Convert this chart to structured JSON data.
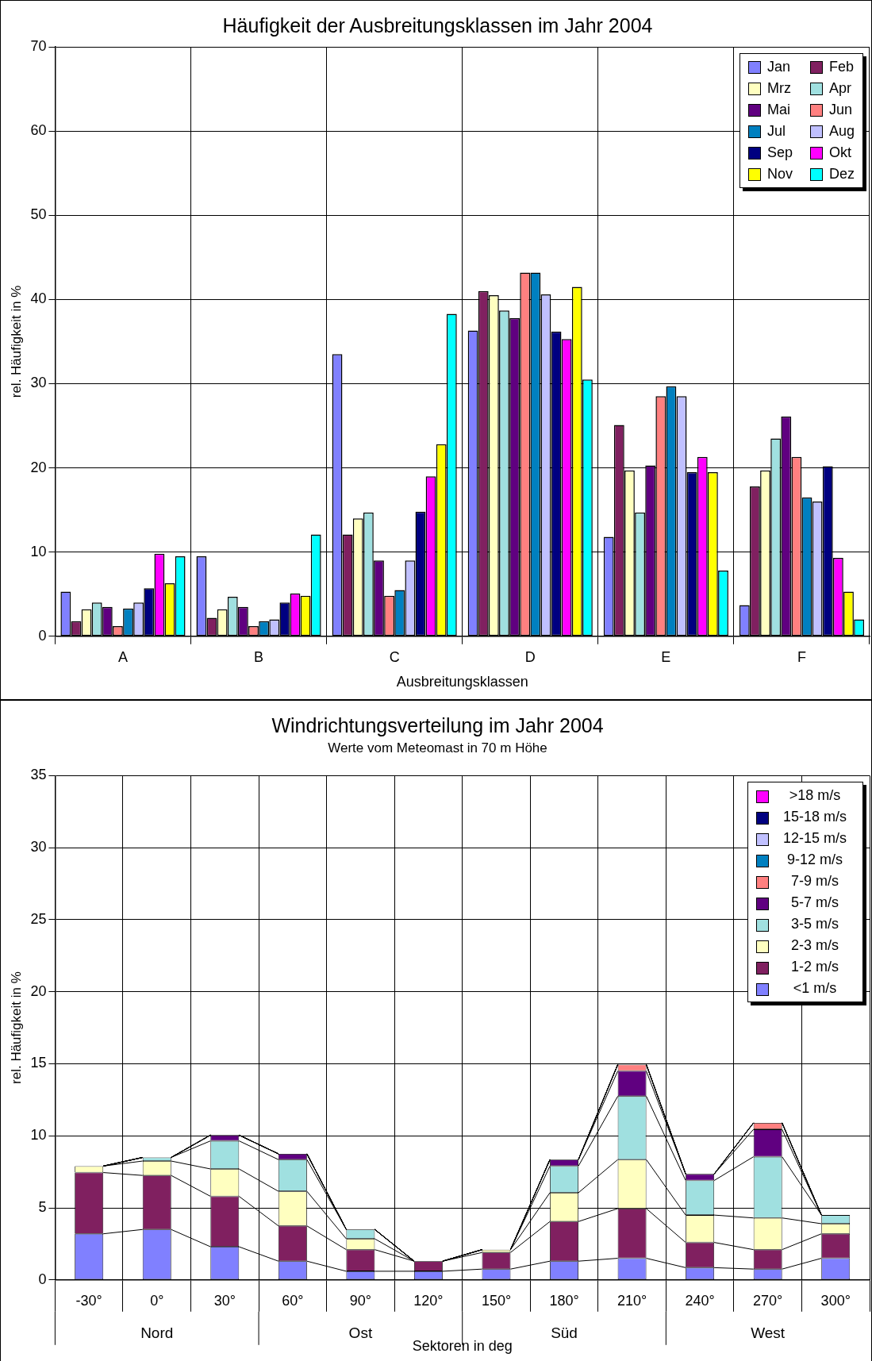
{
  "chart_data": [
    {
      "type": "bar",
      "title": "Häufigkeit der Ausbreitungsklassen im Jahr 2004",
      "xlabel": "Ausbreitungsklassen",
      "ylabel": "rel. Häufigkeit in %",
      "categories": [
        "A",
        "B",
        "C",
        "D",
        "E",
        "F"
      ],
      "ylim": [
        0,
        70
      ],
      "yticks": [
        0,
        10,
        20,
        30,
        40,
        50,
        60,
        70
      ],
      "grid": true,
      "legend": "top right",
      "series": [
        {
          "name": "Jan",
          "color": "#8080ff",
          "values": [
            5.3,
            9.5,
            33.5,
            36.3,
            11.8,
            3.7
          ]
        },
        {
          "name": "Feb",
          "color": "#802060",
          "values": [
            1.8,
            2.2,
            12.1,
            41.0,
            25.1,
            17.8
          ]
        },
        {
          "name": "Mrz",
          "color": "#ffffc0",
          "values": [
            3.2,
            3.2,
            14.0,
            40.5,
            19.7,
            19.7
          ]
        },
        {
          "name": "Apr",
          "color": "#a0e0e0",
          "values": [
            4.0,
            4.7,
            14.7,
            38.7,
            14.7,
            23.5
          ]
        },
        {
          "name": "Mai",
          "color": "#600080",
          "values": [
            3.5,
            3.5,
            9.0,
            37.8,
            20.3,
            26.1
          ]
        },
        {
          "name": "Jun",
          "color": "#ff8080",
          "values": [
            1.2,
            1.2,
            4.8,
            43.2,
            28.5,
            21.3
          ]
        },
        {
          "name": "Jul",
          "color": "#0080c0",
          "values": [
            3.3,
            1.8,
            5.5,
            43.2,
            29.7,
            16.5
          ]
        },
        {
          "name": "Aug",
          "color": "#c0c0ff",
          "values": [
            4.0,
            2.0,
            9.0,
            40.6,
            28.5,
            16.0
          ]
        },
        {
          "name": "Sep",
          "color": "#000080",
          "values": [
            5.7,
            4.0,
            14.8,
            36.2,
            19.5,
            20.2
          ]
        },
        {
          "name": "Okt",
          "color": "#ff00ff",
          "values": [
            9.8,
            5.1,
            19.0,
            35.3,
            21.3,
            9.3
          ]
        },
        {
          "name": "Nov",
          "color": "#ffff00",
          "values": [
            6.3,
            4.8,
            22.8,
            41.5,
            19.5,
            5.3
          ]
        },
        {
          "name": "Dez",
          "color": "#00ffff",
          "values": [
            9.5,
            12.1,
            38.3,
            30.5,
            7.8,
            2.0
          ]
        }
      ]
    },
    {
      "type": "bar",
      "stacked": true,
      "title": "Windrichtungsverteilung im Jahr 2004",
      "subtitle": "Werte vom Meteomast in 70 m Höhe",
      "xlabel": "Sektoren in deg",
      "ylabel": "rel. Häufigkeit in %",
      "categories": [
        "-30°",
        "0°",
        "30°",
        "60°",
        "90°",
        "120°",
        "150°",
        "180°",
        "210°",
        "240°",
        "270°",
        "300°"
      ],
      "ylim": [
        0,
        35
      ],
      "yticks": [
        0,
        5,
        10,
        15,
        20,
        25,
        30,
        35
      ],
      "grid": true,
      "legend": "top right",
      "annotations": [
        "Nord",
        "Ost",
        "Süd",
        "West"
      ],
      "series": [
        {
          "name": "<1 m/s",
          "color": "#8080ff",
          "values": [
            3.2,
            3.5,
            2.3,
            1.3,
            0.6,
            0.6,
            0.75,
            1.3,
            1.5,
            0.85,
            0.75,
            1.5
          ]
        },
        {
          "name": "1-2 m/s",
          "color": "#802060",
          "values": [
            4.25,
            3.75,
            3.5,
            2.45,
            1.5,
            0.7,
            1.15,
            2.75,
            3.45,
            1.75,
            1.35,
            1.7
          ]
        },
        {
          "name": "2-3 m/s",
          "color": "#ffffc0",
          "values": [
            0.45,
            1.0,
            1.9,
            2.4,
            0.75,
            0,
            0.2,
            2.0,
            3.4,
            1.9,
            2.2,
            0.7
          ]
        },
        {
          "name": "3-5 m/s",
          "color": "#a0e0e0",
          "values": [
            0,
            0.25,
            1.95,
            2.2,
            0.65,
            0,
            0,
            1.85,
            4.4,
            2.4,
            4.25,
            0.6
          ]
        },
        {
          "name": "5-7 m/s",
          "color": "#600080",
          "values": [
            0,
            0,
            0.4,
            0.4,
            0,
            0,
            0,
            0.45,
            1.75,
            0.45,
            1.9,
            0
          ]
        },
        {
          "name": "7-9 m/s",
          "color": "#ff8080",
          "values": [
            0,
            0,
            0,
            0,
            0,
            0,
            0,
            0,
            0.45,
            0,
            0.45,
            0
          ]
        },
        {
          "name": "9-12 m/s",
          "color": "#0080c0",
          "values": [
            0,
            0,
            0,
            0,
            0,
            0,
            0,
            0,
            0,
            0,
            0,
            0
          ]
        },
        {
          "name": "12-15 m/s",
          "color": "#c0c0ff",
          "values": [
            0,
            0,
            0,
            0,
            0,
            0,
            0,
            0,
            0,
            0,
            0,
            0
          ]
        },
        {
          "name": "15-18 m/s",
          "color": "#000080",
          "values": [
            0,
            0,
            0,
            0,
            0,
            0,
            0,
            0,
            0,
            0,
            0,
            0
          ]
        },
        {
          "name": ">18 m/s",
          "color": "#ff00ff",
          "values": [
            0,
            0,
            0,
            0,
            0,
            0,
            0,
            0,
            0,
            0,
            0,
            0
          ]
        }
      ]
    }
  ]
}
